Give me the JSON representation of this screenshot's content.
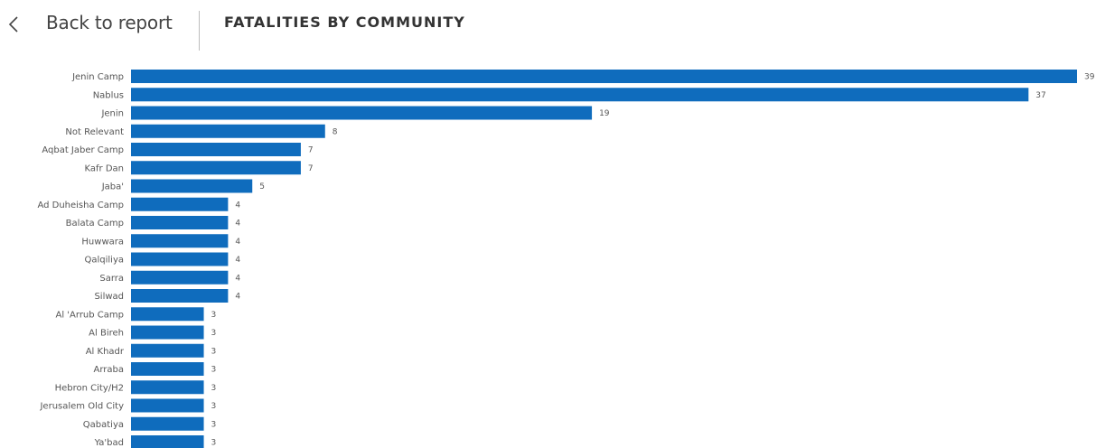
{
  "header": {
    "back_label": "Back to report",
    "title": "FATALITIES BY COMMUNITY"
  },
  "icons": {
    "back": "chevron-left-icon"
  },
  "colors": {
    "bar": "#0F6CBD",
    "text": "#555555"
  },
  "chart_data": {
    "type": "bar",
    "orientation": "horizontal",
    "categories": [
      "Jenin Camp",
      "Nablus",
      "Jenin",
      "Not Relevant",
      "Aqbat Jaber Camp",
      "Kafr Dan",
      "Jaba'",
      "Ad Duheisha Camp",
      "Balata Camp",
      "Huwwara",
      "Qalqiliya",
      "Sarra",
      "Silwad",
      "Al 'Arrub Camp",
      "Al Bireh",
      "Al Khadr",
      "Arraba",
      "Hebron City/H2",
      "Jerusalem Old City",
      "Qabatiya",
      "Ya'bad"
    ],
    "values": [
      39,
      37,
      19,
      8,
      7,
      7,
      5,
      4,
      4,
      4,
      4,
      4,
      4,
      3,
      3,
      3,
      3,
      3,
      3,
      3,
      3
    ],
    "xlim": [
      0,
      39
    ],
    "data_labels": true,
    "grid": false
  }
}
